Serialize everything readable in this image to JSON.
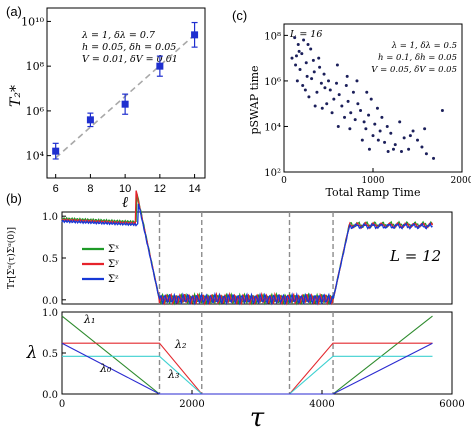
{
  "colors": {
    "blue_marker": "#1f2fcf",
    "fit_line": "#a8a8a8",
    "scatter_dot": "#1b1f5a",
    "sigma_x": "#1e9a27",
    "sigma_y": "#e6232b",
    "sigma_z": "#1638d6",
    "lambda_1": "#2e8b2e",
    "lambda_2": "#e3292f",
    "lambda_3": "#3fd1d1",
    "lambda_0": "#2a2ad0",
    "vline": "#8c8c8c"
  },
  "chart_data": [
    {
      "id": "a",
      "panel_label": "(a)",
      "type": "scatter",
      "xlabel": "ℓ",
      "ylabel": "T₂*",
      "y_scale": "log",
      "xlim": [
        5.5,
        14.6
      ],
      "ylim_log10": [
        3,
        10.6
      ],
      "x_ticks": [
        "6",
        "8",
        "10",
        "12",
        "14"
      ],
      "y_ticks": [
        "10⁴",
        "10⁶",
        "10⁸",
        "10¹⁰"
      ],
      "annotation": [
        "λ = 1, δλ = 0.7",
        "h = 0.05, δh = 0.05",
        "V = 0.01, δV = 0.01"
      ],
      "points": [
        {
          "x": 6,
          "log10_y": 4.2,
          "log10_err": 0.35
        },
        {
          "x": 8,
          "log10_y": 5.6,
          "log10_err": 0.3
        },
        {
          "x": 10,
          "log10_y": 6.3,
          "log10_err": 0.45
        },
        {
          "x": 12,
          "log10_y": 8.0,
          "log10_err": 0.45
        },
        {
          "x": 14,
          "log10_y": 9.4,
          "log10_err": 0.55
        }
      ],
      "fit_log10": {
        "x0": 6,
        "y0": 3.9,
        "x1": 14,
        "y1": 9.4
      }
    },
    {
      "id": "c",
      "panel_label": "(c)",
      "type": "scatter",
      "title": "L = 16",
      "xlabel": "Total Ramp Time",
      "ylabel": "pSWAP time",
      "y_scale": "log",
      "xlim": [
        0,
        2000
      ],
      "ylim_log10": [
        2,
        8.5
      ],
      "x_ticks": [
        "0",
        "1000",
        "2000"
      ],
      "y_ticks": [
        "10²",
        "10⁴",
        "10⁶",
        "10⁸"
      ],
      "annotation": [
        "λ = 1, δλ = 0.5",
        "h = 0.1, δh = 0.05",
        "V = 0.05, δV = 0.05"
      ],
      "points": [
        [
          120,
          7.9
        ],
        [
          160,
          7.6
        ],
        [
          200,
          7.2
        ],
        [
          90,
          7.0
        ],
        [
          250,
          6.8
        ],
        [
          300,
          7.4
        ],
        [
          140,
          7.1
        ],
        [
          180,
          6.5
        ],
        [
          220,
          7.8
        ],
        [
          330,
          6.9
        ],
        [
          260,
          6.2
        ],
        [
          150,
          6.0
        ],
        [
          400,
          6.6
        ],
        [
          420,
          5.9
        ],
        [
          370,
          5.5
        ],
        [
          280,
          5.3
        ],
        [
          210,
          5.8
        ],
        [
          450,
          6.3
        ],
        [
          500,
          6.0
        ],
        [
          520,
          5.6
        ],
        [
          560,
          5.2
        ],
        [
          600,
          6.7
        ],
        [
          620,
          5.4
        ],
        [
          650,
          4.9
        ],
        [
          700,
          5.8
        ],
        [
          720,
          5.1
        ],
        [
          750,
          4.6
        ],
        [
          780,
          5.5
        ],
        [
          800,
          4.3
        ],
        [
          830,
          5.0
        ],
        [
          860,
          4.7
        ],
        [
          900,
          4.2
        ],
        [
          920,
          3.9
        ],
        [
          950,
          4.5
        ],
        [
          980,
          5.2
        ],
        [
          1000,
          3.6
        ],
        [
          1020,
          4.1
        ],
        [
          1050,
          4.8
        ],
        [
          1080,
          3.8
        ],
        [
          1100,
          4.4
        ],
        [
          1130,
          3.3
        ],
        [
          1160,
          4.0
        ],
        [
          1200,
          3.7
        ],
        [
          1250,
          3.2
        ],
        [
          1300,
          4.2
        ],
        [
          1350,
          3.5
        ],
        [
          1400,
          3.0
        ],
        [
          1450,
          3.8
        ],
        [
          1500,
          3.4
        ],
        [
          1550,
          3.1
        ],
        [
          1600,
          2.8
        ],
        [
          1780,
          4.7
        ],
        [
          340,
          6.4
        ],
        [
          480,
          5.0
        ],
        [
          540,
          4.6
        ],
        [
          680,
          4.4
        ],
        [
          740,
          3.9
        ],
        [
          880,
          3.4
        ],
        [
          960,
          3.0
        ],
        [
          1170,
          2.9
        ],
        [
          1230,
          3.0
        ],
        [
          610,
          4.0
        ],
        [
          430,
          4.8
        ],
        [
          390,
          7.0
        ],
        [
          270,
          7.6
        ],
        [
          130,
          6.7
        ],
        [
          170,
          7.3
        ],
        [
          310,
          6.1
        ],
        [
          460,
          5.7
        ],
        [
          590,
          5.9
        ],
        [
          710,
          6.2
        ],
        [
          820,
          6.0
        ],
        [
          930,
          5.5
        ],
        [
          1060,
          3.4
        ],
        [
          1320,
          2.9
        ],
        [
          1420,
          3.6
        ],
        [
          1580,
          3.9
        ],
        [
          1680,
          2.6
        ],
        [
          240,
          5.6
        ],
        [
          350,
          4.9
        ]
      ]
    },
    {
      "id": "b-top",
      "panel_label": "(b)",
      "type": "line",
      "ylabel": "Tr[Σᵅ(τ)Σᵅ(0)]",
      "xlim": [
        0,
        6000
      ],
      "ylim": [
        -0.05,
        1.05
      ],
      "y_ticks": [
        "0.0",
        "0.5",
        "1.0"
      ],
      "legend": [
        "Σˣ",
        "Σʸ",
        "Σᶻ"
      ],
      "legend_position": "left",
      "annotation": "L = 12",
      "vlines": [
        1500,
        2150,
        3500,
        4170
      ]
    },
    {
      "id": "b-bottom",
      "type": "line",
      "xlabel": "τ",
      "ylabel": "λ",
      "xlim": [
        0,
        6000
      ],
      "ylim": [
        0,
        1.0
      ],
      "x_ticks": [
        "0",
        "2000",
        "4000",
        "6000"
      ],
      "y_ticks": [
        "0.0",
        "0.5",
        "1.0"
      ],
      "vlines": [
        1500,
        2150,
        3500,
        4170
      ],
      "series": [
        {
          "name": "λ₁",
          "x": [
            0,
            1500,
            4170,
            5700
          ],
          "y": [
            0.95,
            0,
            0,
            0.95
          ]
        },
        {
          "name": "λ₂",
          "x": [
            0,
            1500,
            2150,
            3500,
            4170,
            5700
          ],
          "y": [
            0.62,
            0.62,
            0,
            0,
            0.62,
            0.62
          ]
        },
        {
          "name": "λ₃",
          "x": [
            0,
            1500,
            2150,
            3500,
            4170,
            5700
          ],
          "y": [
            0.46,
            0.46,
            0,
            0,
            0.46,
            0.46
          ]
        },
        {
          "name": "λ₀",
          "x": [
            0,
            1500,
            4170,
            5700
          ],
          "y": [
            0.62,
            0,
            0,
            0.62
          ]
        }
      ],
      "series_labels": [
        "λ₁",
        "λ₂",
        "λ₃",
        "λ₀"
      ]
    }
  ]
}
